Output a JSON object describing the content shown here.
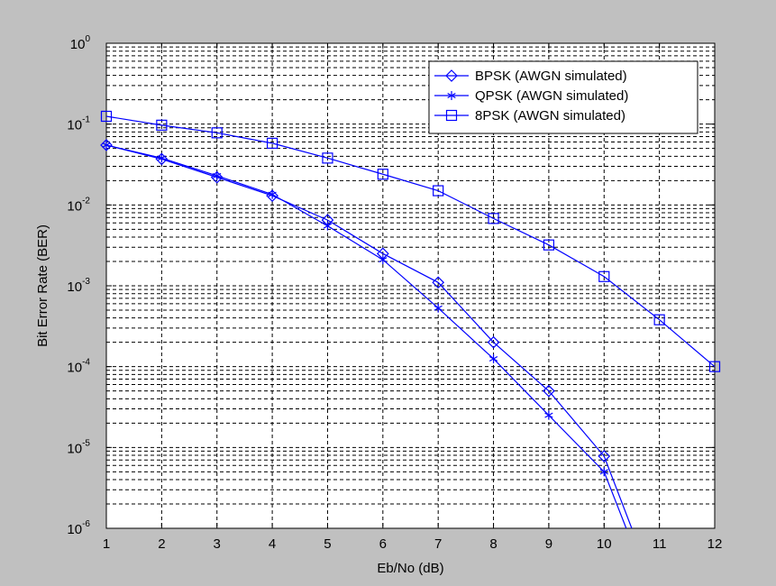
{
  "chart_data": {
    "type": "line",
    "xlabel": "Eb/No (dB)",
    "ylabel": "Bit Error Rate (BER)",
    "xlim": [
      1,
      12
    ],
    "ylim": [
      1e-06,
      1
    ],
    "yscale": "log",
    "grid": true,
    "legend_position": "top-right",
    "x_ticks": [
      "1",
      "2",
      "3",
      "4",
      "5",
      "6",
      "7",
      "8",
      "9",
      "10",
      "11",
      "12"
    ],
    "y_ticks": [
      {
        "base": "10",
        "exp": "0"
      },
      {
        "base": "10",
        "exp": "-1"
      },
      {
        "base": "10",
        "exp": "-2"
      },
      {
        "base": "10",
        "exp": "-3"
      },
      {
        "base": "10",
        "exp": "-4"
      },
      {
        "base": "10",
        "exp": "-5"
      },
      {
        "base": "10",
        "exp": "-6"
      }
    ],
    "series": [
      {
        "name": "BPSK (AWGN simulated)",
        "marker": "diamond",
        "color": "#0000ff",
        "x": [
          1,
          2,
          3,
          4,
          5,
          6,
          7,
          8,
          9,
          10
        ],
        "y": [
          0.055,
          0.037,
          0.022,
          0.013,
          0.0065,
          0.0025,
          0.0011,
          0.0002,
          5e-05,
          7.8e-06
        ],
        "tail": {
          "x": 10.5,
          "y": 1e-06
        }
      },
      {
        "name": "QPSK (AWGN simulated)",
        "marker": "asterisk",
        "color": "#0000ff",
        "x": [
          1,
          2,
          3,
          4,
          5,
          6,
          7,
          8,
          9,
          10
        ],
        "y": [
          0.055,
          0.038,
          0.023,
          0.0135,
          0.0055,
          0.0021,
          0.00053,
          0.000125,
          2.5e-05,
          5e-06
        ],
        "tail": {
          "x": 10.4,
          "y": 1e-06
        }
      },
      {
        "name": "8PSK (AWGN simulated)",
        "marker": "square",
        "color": "#0000ff",
        "x": [
          1,
          2,
          3,
          4,
          5,
          6,
          7,
          8,
          9,
          10,
          11,
          12
        ],
        "y": [
          0.125,
          0.097,
          0.078,
          0.058,
          0.038,
          0.024,
          0.015,
          0.0068,
          0.0032,
          0.0013,
          0.00038,
          0.0001
        ]
      }
    ]
  }
}
